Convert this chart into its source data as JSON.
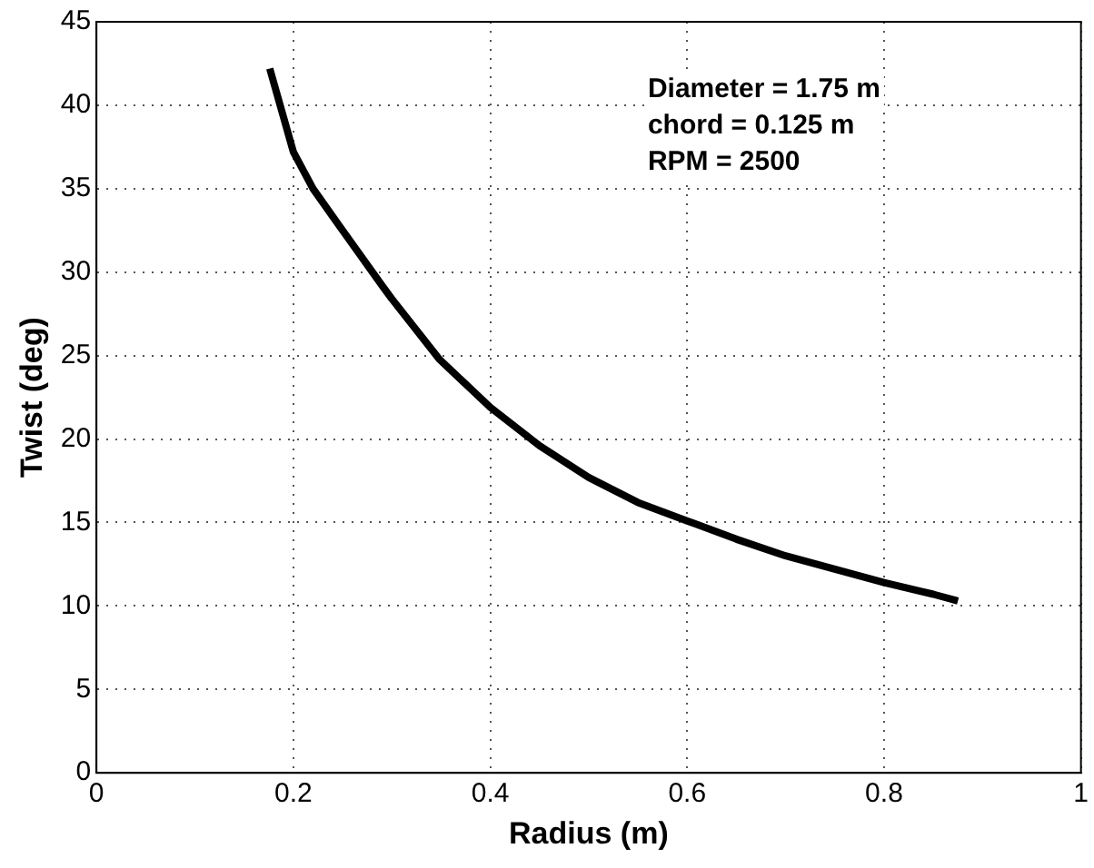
{
  "chart_data": {
    "type": "line",
    "xlabel": "Radius (m)",
    "ylabel": "Twist (deg)",
    "annotations": [
      "Diameter = 1.75 m",
      "chord = 0.125 m",
      "RPM = 2500"
    ],
    "series": [
      {
        "color": "#000000",
        "x": [
          0.176,
          0.2,
          0.22,
          0.25,
          0.29,
          0.3,
          0.348,
          0.4,
          0.45,
          0.5,
          0.55,
          0.6,
          0.65,
          0.7,
          0.75,
          0.8,
          0.85,
          0.875
        ],
        "values": [
          42.2,
          37.2,
          35,
          32.5,
          29.2,
          28.4,
          24.8,
          21.9,
          19.6,
          17.7,
          16.2,
          15.1,
          14,
          13,
          12.2,
          11.4,
          10.7,
          10.3
        ]
      }
    ],
    "xlim": [
      0,
      1
    ],
    "xticks": [
      0,
      0.2,
      0.4,
      0.6,
      0.8,
      1
    ],
    "ylim": [
      0,
      45
    ],
    "yticks": [
      0,
      5,
      10,
      15,
      20,
      25,
      30,
      35,
      40,
      45
    ],
    "grid": true,
    "legend": false,
    "marker": "none",
    "line_style": "solid"
  }
}
